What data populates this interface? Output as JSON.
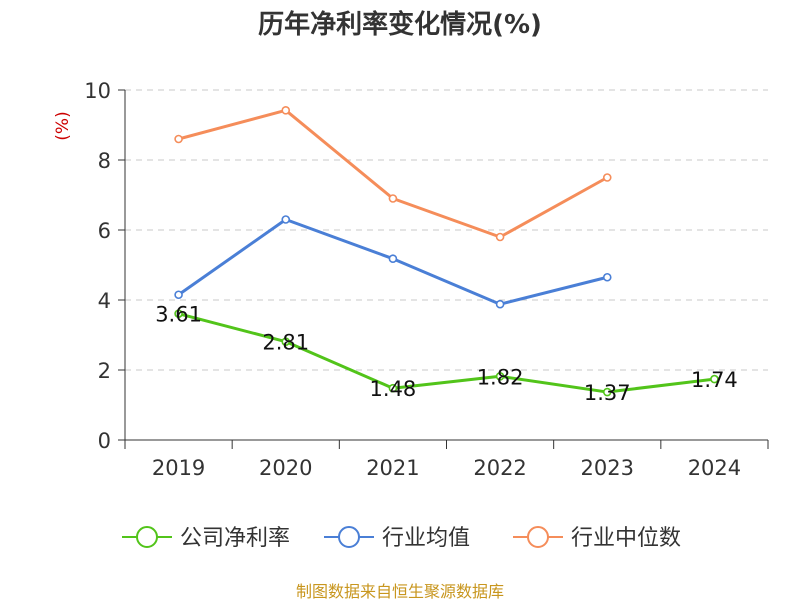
{
  "title": "历年净利率变化情况(%)",
  "source": "制图数据来自恒生聚源数据库",
  "colors": {
    "company": "#52c41a",
    "industry_avg": "#4a7fd6",
    "industry_median": "#f58d5a",
    "ylabel": "#cc0000",
    "source": "#c8961e"
  },
  "chart_data": {
    "type": "line",
    "categories": [
      "2019",
      "2020",
      "2021",
      "2022",
      "2023",
      "2024"
    ],
    "ylabel": "(%)",
    "ylim": [
      0,
      10
    ],
    "yticks": [
      0,
      2,
      4,
      6,
      8,
      10
    ],
    "grid": true,
    "legend_position": "bottom",
    "series": [
      {
        "name": "公司净利率",
        "color": "#52c41a",
        "values": [
          3.61,
          2.81,
          1.48,
          1.82,
          1.37,
          1.74
        ],
        "labels": [
          "3.61",
          "2.81",
          "1.48",
          "1.82",
          "1.37",
          "1.74"
        ]
      },
      {
        "name": "行业均值",
        "color": "#4a7fd6",
        "values": [
          4.15,
          6.3,
          5.18,
          3.88,
          4.65,
          null
        ]
      },
      {
        "name": "行业中位数",
        "color": "#f58d5a",
        "values": [
          8.6,
          9.42,
          6.9,
          5.8,
          7.5,
          null
        ]
      }
    ]
  }
}
